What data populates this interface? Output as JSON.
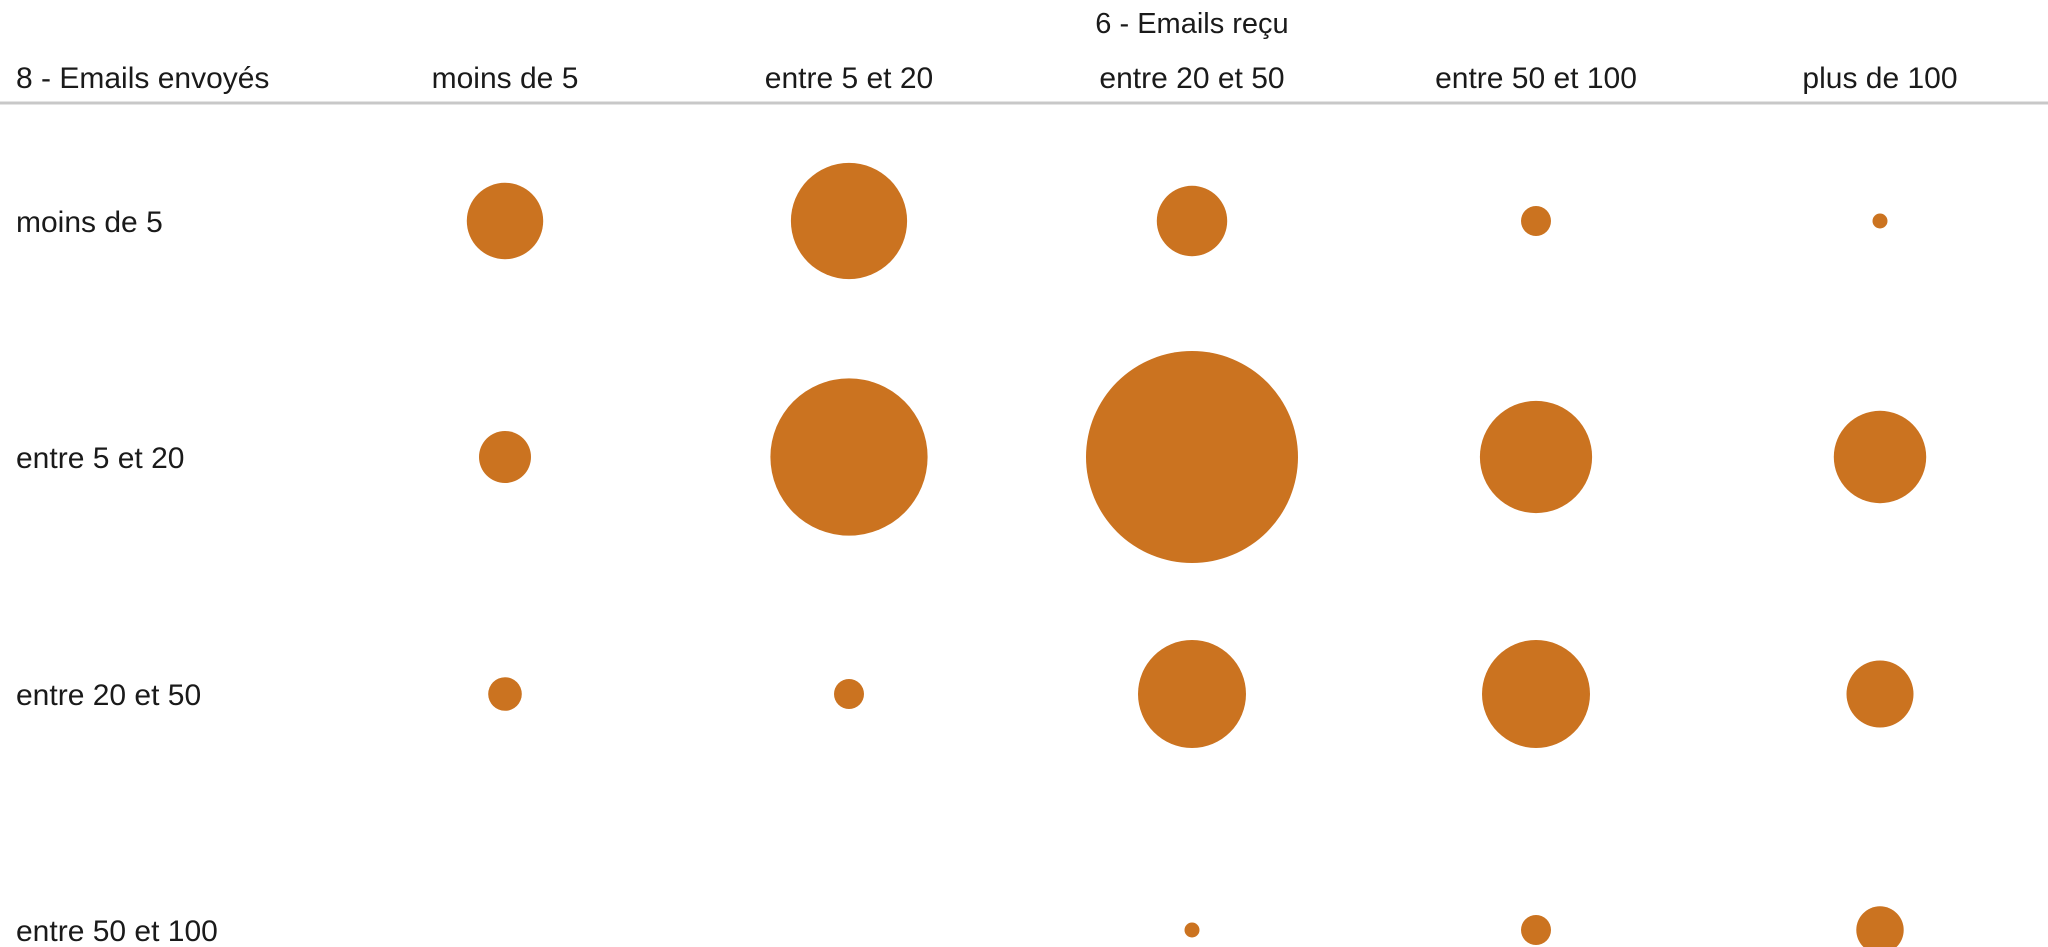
{
  "chart_data": {
    "type": "bubble-matrix",
    "column_variable": "6 - Emails reçu",
    "row_variable": "8 - Emails envoyés",
    "columns": [
      "moins de 5",
      "entre 5 et 20",
      "entre 20 et 50",
      "entre 50 et 100",
      "plus de 100"
    ],
    "rows": [
      "moins de 5",
      "entre 5 et 20",
      "entre 20 et 50",
      "entre 50 et 100"
    ],
    "values": [
      [
        13,
        30,
        11,
        2,
        0.5
      ],
      [
        6,
        55,
        100,
        28,
        19
      ],
      [
        2.5,
        2,
        26,
        26,
        10
      ],
      [
        0,
        0,
        0.5,
        2,
        5
      ]
    ],
    "bubble_color": "#cb7320",
    "header_rule_color": "#c8c8c8"
  }
}
